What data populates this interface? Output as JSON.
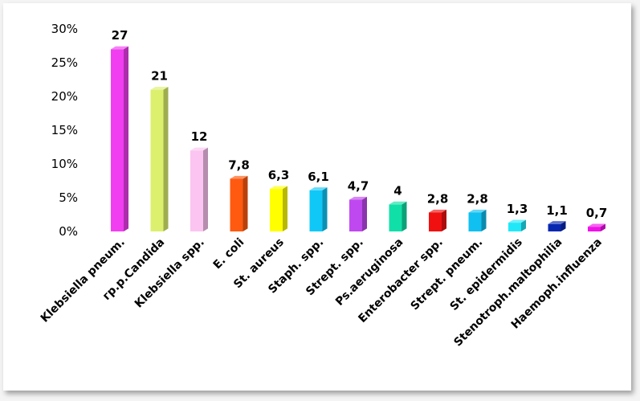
{
  "chart_data": {
    "type": "bar",
    "title": "",
    "xlabel": "",
    "ylabel": "",
    "ylim": [
      0,
      30
    ],
    "y_ticks": [
      "0%",
      "5%",
      "10%",
      "15%",
      "20%",
      "25%",
      "30%"
    ],
    "grid": false,
    "legend": "none",
    "categories": [
      "Klebsiella pneum.",
      "гр.р.Candida",
      "Klebsiella spp.",
      "E. coli",
      "St. aureus",
      "Staph. spp.",
      "Strept. spp.",
      "Ps.aeruginosa",
      "Enterobacter spp.",
      "Strept. pneum.",
      "St. epidermidis",
      "Stenotroph.maltophilia",
      "Haemoph.influenza"
    ],
    "values": [
      27,
      21,
      12,
      7.8,
      6.3,
      6.1,
      4.7,
      4,
      2.8,
      2.8,
      1.3,
      1.1,
      0.7
    ],
    "data_labels": [
      "27",
      "21",
      "12",
      "7,8",
      "6,3",
      "6,1",
      "4,7",
      "4",
      "2,8",
      "2,8",
      "1,3",
      "1,1",
      "0,7"
    ],
    "colors": [
      "#f03ef0",
      "#ddf06e",
      "#fcc4f0",
      "#ff5a10",
      "#ffff00",
      "#10c8f8",
      "#c048f0",
      "#10e0a8",
      "#f01010",
      "#10c0f0",
      "#20e8f8",
      "#0828b0",
      "#f010e8"
    ]
  }
}
